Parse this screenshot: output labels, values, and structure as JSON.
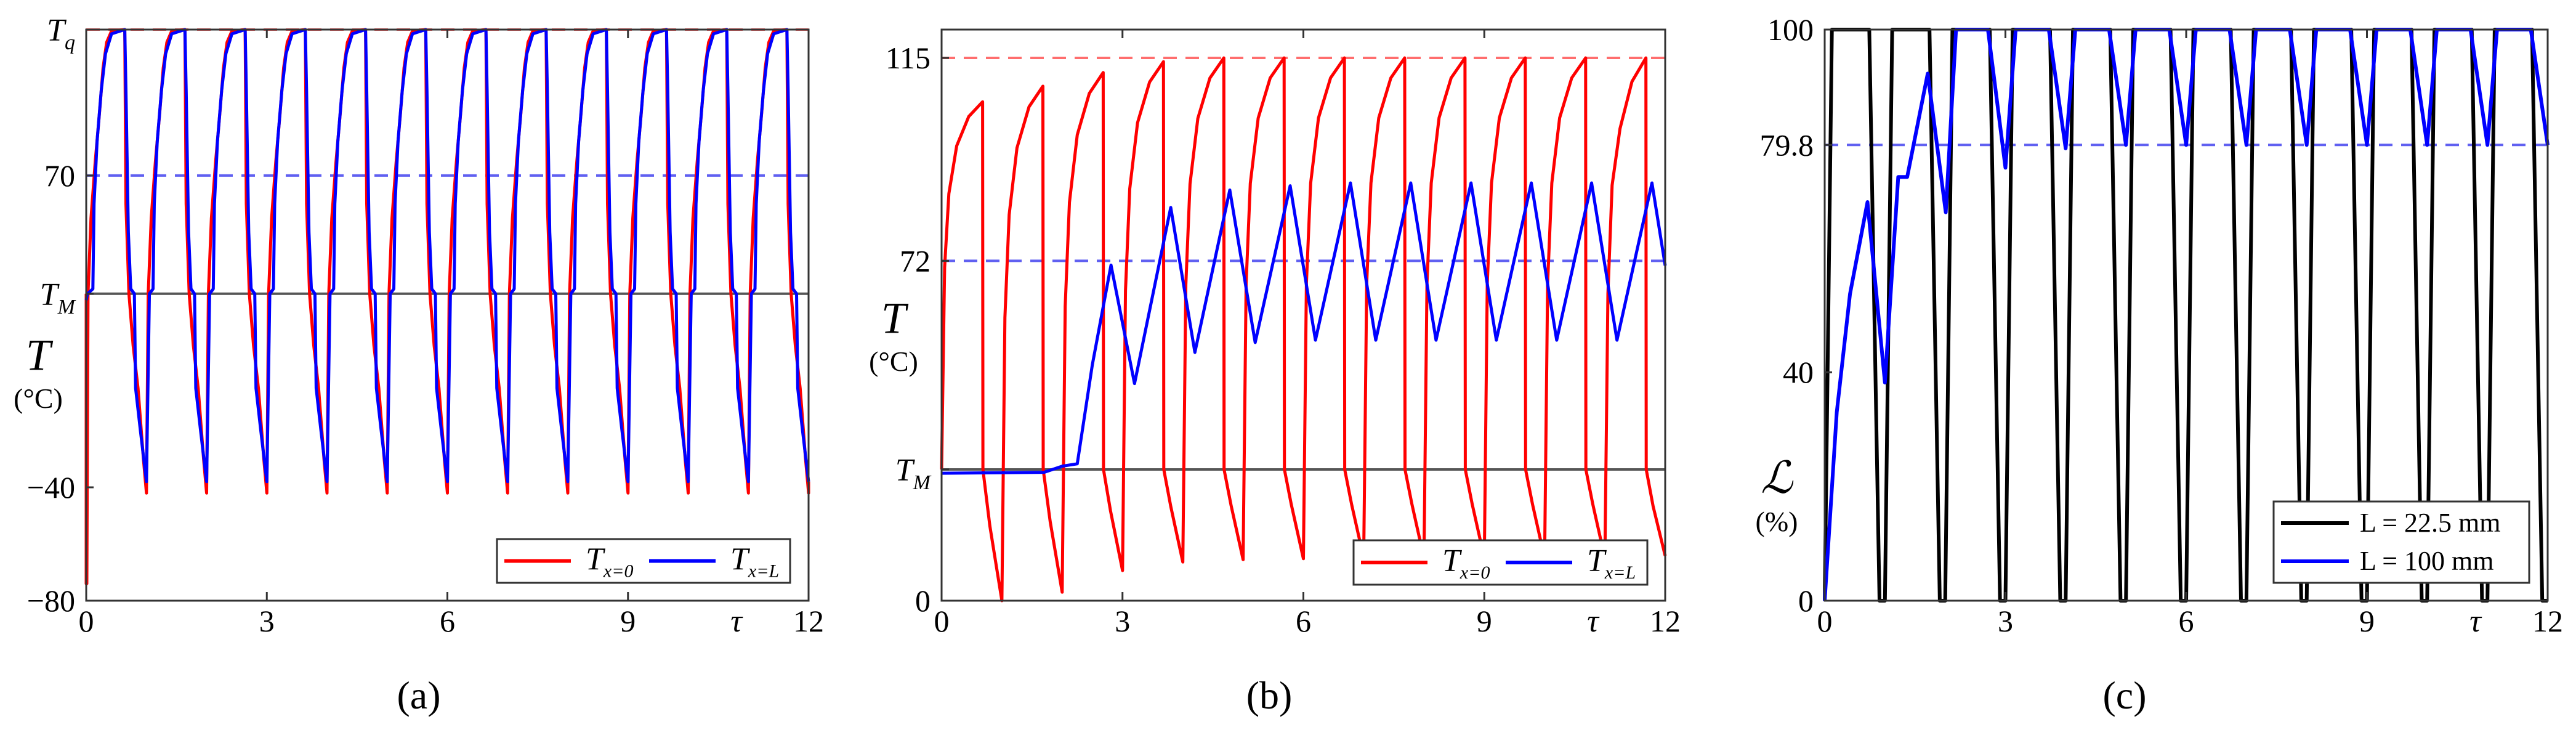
{
  "chart_data": [
    {
      "panel": "(a)",
      "type": "line",
      "title": "",
      "xlabel": "τ",
      "ylabel": "T",
      "yunit": "(°C)",
      "xlim": [
        0,
        12
      ],
      "ylim": [
        -80,
        121.5
      ],
      "xticks": [
        0,
        3,
        6,
        9,
        12
      ],
      "xtick_labels": [
        "0",
        "3",
        "6",
        "9",
        "12"
      ],
      "yticks": [
        {
          "value": -80,
          "label": "−80"
        },
        {
          "value": -40,
          "label": "−40"
        },
        {
          "value": 28.3,
          "label": "T",
          "sub": "M"
        },
        {
          "value": 70,
          "label": "70"
        },
        {
          "value": 121.5,
          "label": "T",
          "sub": "q"
        }
      ],
      "reference_lines": [
        {
          "value": 121.5,
          "color": "#ff5555",
          "style": "dashed",
          "meaning": "T_q"
        },
        {
          "value": 70,
          "color": "#4444ee",
          "style": "dashed"
        },
        {
          "value": 28.3,
          "color": "#444444",
          "style": "solid",
          "meaning": "T_M"
        }
      ],
      "legend": {
        "position": "lower right",
        "orientation": "horizontal",
        "entries": [
          {
            "label": "T",
            "sub": "x=0",
            "color": "#ff0000"
          },
          {
            "label": "T",
            "sub": "x=L",
            "color": "#0000ff"
          }
        ]
      },
      "series": [
        {
          "name": "T_{x=0}",
          "color": "#ff0000",
          "cycle_template": [
            [
              0.0,
              -42
            ],
            [
              0.03,
              28.3
            ],
            [
              0.08,
              55
            ],
            [
              0.15,
              75
            ],
            [
              0.22,
              92
            ],
            [
              0.28,
              108
            ],
            [
              0.34,
              117
            ],
            [
              0.42,
              121
            ],
            [
              0.64,
              121.5
            ],
            [
              0.66,
              60
            ],
            [
              0.71,
              28.3
            ],
            [
              0.78,
              10
            ],
            [
              0.86,
              -5
            ],
            [
              0.95,
              -30
            ],
            [
              1.0,
              -42
            ]
          ],
          "initial": [
            [
              0,
              28.3
            ],
            [
              0.0,
              -74
            ],
            [
              0.01,
              -74
            ],
            [
              0.03,
              28.3
            ]
          ],
          "period": 1,
          "cycles": 12,
          "end": [
            [
              12.0,
              -42
            ],
            [
              12.0,
              -38
            ]
          ]
        },
        {
          "name": "T_{x=L}",
          "color": "#0000ff",
          "cycle_template": [
            [
              0.0,
              -38
            ],
            [
              0.05,
              28.3
            ],
            [
              0.11,
              30
            ],
            [
              0.13,
              60
            ],
            [
              0.18,
              82
            ],
            [
              0.25,
              100
            ],
            [
              0.32,
              113
            ],
            [
              0.42,
              120
            ],
            [
              0.64,
              121.5
            ],
            [
              0.66,
              100
            ],
            [
              0.7,
              50
            ],
            [
              0.74,
              30
            ],
            [
              0.8,
              28.3
            ],
            [
              0.82,
              -5
            ],
            [
              0.9,
              -20
            ],
            [
              1.0,
              -38
            ]
          ],
          "initial": [
            [
              0,
              26
            ],
            [
              0.02,
              28.3
            ],
            [
              0.11,
              30
            ]
          ],
          "period": 1,
          "cycles": 12
        }
      ]
    },
    {
      "panel": "(b)",
      "type": "line",
      "xlabel": "τ",
      "ylabel": "T",
      "yunit": "(°C)",
      "xlim": [
        0,
        12
      ],
      "ylim": [
        0,
        121
      ],
      "xticks": [
        0,
        3,
        6,
        9,
        12
      ],
      "xtick_labels": [
        "0",
        "3",
        "6",
        "9",
        "12"
      ],
      "yticks": [
        {
          "value": 0,
          "label": "0"
        },
        {
          "value": 27.8,
          "label": "T",
          "sub": "M"
        },
        {
          "value": 72,
          "label": "72"
        },
        {
          "value": 115,
          "label": "115"
        }
      ],
      "reference_lines": [
        {
          "value": 115,
          "color": "#ff5555",
          "style": "dashed"
        },
        {
          "value": 72,
          "color": "#4444ee",
          "style": "dashed"
        },
        {
          "value": 27.8,
          "color": "#444444",
          "style": "solid",
          "meaning": "T_M"
        }
      ],
      "legend": {
        "position": "lower right",
        "orientation": "horizontal",
        "entries": [
          {
            "label": "T",
            "sub": "x=0",
            "color": "#ff0000"
          },
          {
            "label": "T",
            "sub": "x=L",
            "color": "#0000ff"
          }
        ]
      },
      "series": [
        {
          "name": "T_{x=0}",
          "color": "#ff0000",
          "peaks": [
            105.7,
            109,
            111.9,
            114.2,
            115,
            115,
            115,
            115,
            115,
            115,
            115
          ],
          "troughs": [
            0,
            1.8,
            6.4,
            8.2,
            8.7,
            8.9,
            9,
            9,
            9,
            9,
            9
          ],
          "peak_tau_offset": 0.68,
          "end_value": 9.5
        },
        {
          "name": "T_{x=L}",
          "color": "#0000ff",
          "points": [
            [
              0,
              27
            ],
            [
              1.7,
              27.2
            ],
            [
              2.0,
              28.5
            ],
            [
              2.25,
              29
            ],
            [
              2.5,
              50
            ],
            [
              2.81,
              71.1
            ],
            [
              3.2,
              46
            ],
            [
              3.8,
              83.3
            ],
            [
              4.2,
              52.6
            ],
            [
              4.78,
              87
            ],
            [
              5.2,
              54.7
            ],
            [
              5.78,
              87.9
            ],
            [
              6.2,
              55.2
            ],
            [
              6.78,
              88.5
            ],
            [
              7.2,
              55.2
            ],
            [
              7.78,
              88.5
            ],
            [
              8.2,
              55.2
            ],
            [
              8.78,
              88.5
            ],
            [
              9.2,
              55.2
            ],
            [
              9.78,
              88.5
            ],
            [
              10.2,
              55.2
            ],
            [
              10.78,
              88.5
            ],
            [
              11.2,
              55.2
            ],
            [
              11.78,
              88.5
            ],
            [
              12.0,
              71
            ]
          ]
        }
      ]
    },
    {
      "panel": "(c)",
      "type": "line",
      "xlabel": "τ",
      "ylabel": "ℒ",
      "yunit": "(%)",
      "xlim": [
        0,
        12
      ],
      "ylim": [
        0,
        100
      ],
      "xticks": [
        0,
        3,
        6,
        9,
        12
      ],
      "xtick_labels": [
        "0",
        "3",
        "6",
        "9",
        "12"
      ],
      "yticks": [
        {
          "value": 0,
          "label": "0"
        },
        {
          "value": 40,
          "label": "40"
        },
        {
          "value": 79.8,
          "label": "79.8"
        },
        {
          "value": 100,
          "label": "100"
        }
      ],
      "reference_lines": [
        {
          "value": 79.8,
          "color": "#4444ee",
          "style": "dashed"
        }
      ],
      "legend": {
        "position": "lower right",
        "orientation": "vertical",
        "entries": [
          {
            "label": "L = 22.5 mm",
            "color": "#000000"
          },
          {
            "label": "L = 100 mm",
            "color": "#0000ff"
          }
        ]
      },
      "series": [
        {
          "name": "L = 22.5 mm",
          "color": "#000000",
          "cycle_template": [
            [
              0.0,
              0
            ],
            [
              0.12,
              100
            ],
            [
              0.74,
              100
            ],
            [
              0.91,
              0
            ],
            [
              1.0,
              0
            ]
          ],
          "period": 1,
          "cycles": 12
        },
        {
          "name": "L = 100 mm",
          "color": "#0000ff",
          "points": [
            [
              0,
              0
            ],
            [
              0.2,
              33
            ],
            [
              0.42,
              53.7
            ],
            [
              0.71,
              69.8
            ],
            [
              1.0,
              38.2
            ],
            [
              1.22,
              74.2
            ],
            [
              1.37,
              74.2
            ],
            [
              1.71,
              92.3
            ],
            [
              1.86,
              80.1
            ],
            [
              2.01,
              68
            ],
            [
              2.18,
              100
            ],
            [
              2.71,
              100
            ],
            [
              3.0,
              75.8
            ],
            [
              3.17,
              100
            ],
            [
              3.72,
              100
            ],
            [
              4.0,
              79.2
            ],
            [
              4.16,
              100
            ],
            [
              4.72,
              100
            ],
            [
              5.0,
              79.8
            ],
            [
              5.16,
              100
            ],
            [
              5.72,
              100
            ],
            [
              6.0,
              79.8
            ],
            [
              6.16,
              100
            ],
            [
              6.72,
              100
            ],
            [
              7.0,
              79.8
            ],
            [
              7.16,
              100
            ],
            [
              7.72,
              100
            ],
            [
              8.0,
              79.8
            ],
            [
              8.16,
              100
            ],
            [
              8.72,
              100
            ],
            [
              9.0,
              79.8
            ],
            [
              9.16,
              100
            ],
            [
              9.72,
              100
            ],
            [
              10.0,
              79.8
            ],
            [
              10.16,
              100
            ],
            [
              10.72,
              100
            ],
            [
              11.0,
              79.8
            ],
            [
              11.16,
              100
            ],
            [
              11.72,
              100
            ],
            [
              12.0,
              79.8
            ]
          ]
        }
      ]
    }
  ],
  "panels": {
    "a": {
      "label": "(a)"
    },
    "b": {
      "label": "(b)"
    },
    "c": {
      "label": "(c)"
    }
  },
  "axis_symbols": {
    "tau": "τ",
    "T": "T",
    "L_script": "ℒ",
    "unit_c": "(°C)",
    "unit_pct": "(%)"
  }
}
